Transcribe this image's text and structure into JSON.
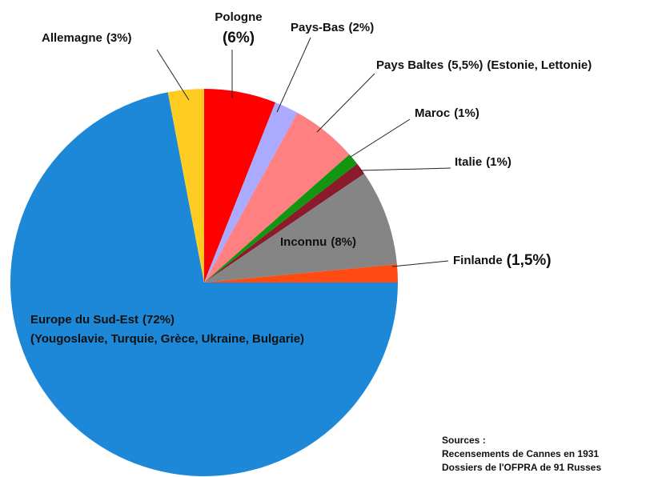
{
  "chart_data": {
    "type": "pie",
    "categories": [
      "Pologne",
      "Pays-Bas",
      "Pays Baltes",
      "Maroc",
      "Italie",
      "Inconnu",
      "Finlande",
      "Europe du Sud-Est",
      "Allemagne"
    ],
    "values": [
      6,
      2,
      5.5,
      1,
      1,
      8,
      1.5,
      72,
      3
    ],
    "value_labels": [
      "(6%)",
      "(2%)",
      "(5,5%)",
      "(1%)",
      "(1%)",
      "(8%)",
      "(1,5%)",
      "(72%)",
      "(3%)"
    ],
    "category_details": [
      null,
      null,
      "(Estonie, Lettonie)",
      null,
      null,
      null,
      null,
      "(Yougoslavie, Turquie, Grèce, Ukraine, Bulgarie)",
      null
    ],
    "colors": [
      "#ff0000",
      "#aaaaff",
      "#ff8080",
      "#129612",
      "#8b1a2a",
      "#858585",
      "#ff4a12",
      "#1d88d8",
      "#ffcc22"
    ],
    "start_angle": 0,
    "direction": "clockwise",
    "source": [
      "Sources :",
      "Recensements de Cannes en 1931",
      "Dossiers de l'OFPRA de 91 Russes"
    ]
  }
}
